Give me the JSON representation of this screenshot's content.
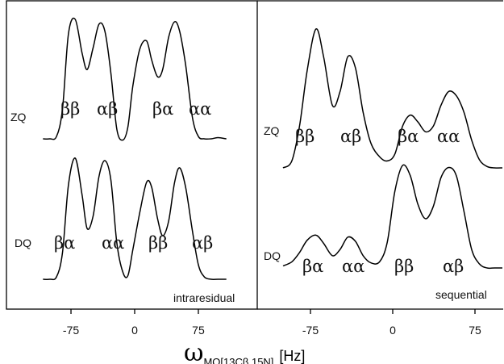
{
  "chart_data": [
    {
      "type": "line",
      "corner_label": "intraresidual",
      "x_ticks": [
        -75,
        0,
        75
      ],
      "traces": [
        {
          "name": "ZQ",
          "peak_labels": [
            "ββ",
            "αβ",
            "βα",
            "αα"
          ],
          "x": [
            -108,
            -100,
            -92,
            -85,
            -78,
            -70,
            -62,
            -56,
            -49,
            -42,
            -35,
            -28,
            -21,
            -14,
            -8,
            -2,
            6,
            14,
            20,
            27,
            33,
            40,
            47,
            53,
            60,
            68,
            75,
            82,
            90,
            98,
            108
          ],
          "y": [
            0.0,
            0.0,
            0.02,
            0.25,
            0.88,
            1.0,
            0.72,
            0.58,
            0.76,
            0.96,
            0.9,
            0.55,
            0.08,
            -0.01,
            0.1,
            0.45,
            0.75,
            0.82,
            0.66,
            0.52,
            0.58,
            0.85,
            0.98,
            0.9,
            0.62,
            0.18,
            0.02,
            0.0,
            0.0,
            0.01,
            0.0
          ]
        },
        {
          "name": "DQ",
          "peak_labels": [
            "βα",
            "αα",
            "ββ",
            "αβ"
          ],
          "x": [
            -108,
            -100,
            -92,
            -85,
            -78,
            -70,
            -62,
            -56,
            -49,
            -42,
            -35,
            -28,
            -21,
            -14,
            -8,
            -2,
            6,
            14,
            20,
            27,
            33,
            40,
            47,
            53,
            60,
            68,
            75,
            82,
            90,
            98,
            108
          ],
          "y": [
            0.0,
            0.0,
            0.02,
            0.22,
            0.78,
            1.0,
            0.7,
            0.42,
            0.52,
            0.85,
            0.98,
            0.82,
            0.3,
            0.06,
            0.03,
            0.25,
            0.55,
            0.8,
            0.76,
            0.5,
            0.36,
            0.48,
            0.8,
            0.92,
            0.76,
            0.4,
            0.12,
            0.02,
            0.0,
            0.0,
            0.0
          ]
        }
      ]
    },
    {
      "type": "line",
      "corner_label": "sequential",
      "x_ticks": [
        -75,
        0,
        75
      ],
      "traces": [
        {
          "name": "ZQ",
          "peak_labels": [
            "ββ",
            "αβ",
            "βα",
            "αα"
          ],
          "x": [
            -100,
            -92,
            -85,
            -78,
            -70,
            -63,
            -55,
            -48,
            -41,
            -34,
            -27,
            -20,
            -12,
            -5,
            2,
            9,
            16,
            23,
            30,
            37,
            44,
            51,
            58,
            65,
            72,
            79,
            86,
            93,
            100
          ],
          "y": [
            0.0,
            0.05,
            0.3,
            0.7,
            1.0,
            0.8,
            0.45,
            0.55,
            0.8,
            0.72,
            0.4,
            0.18,
            0.08,
            0.05,
            0.1,
            0.3,
            0.38,
            0.33,
            0.26,
            0.3,
            0.45,
            0.55,
            0.52,
            0.4,
            0.2,
            0.06,
            0.01,
            0.0,
            0.0
          ]
        },
        {
          "name": "DQ",
          "peak_labels": [
            "βα",
            "αα",
            "ββ",
            "αβ"
          ],
          "x": [
            -100,
            -92,
            -85,
            -78,
            -70,
            -63,
            -55,
            -48,
            -41,
            -34,
            -27,
            -20,
            -12,
            -5,
            2,
            9,
            16,
            23,
            30,
            37,
            44,
            51,
            58,
            65,
            72,
            79,
            86,
            93,
            100
          ],
          "y": [
            0.02,
            0.06,
            0.15,
            0.27,
            0.32,
            0.24,
            0.12,
            0.18,
            0.3,
            0.26,
            0.12,
            0.05,
            0.06,
            0.25,
            0.75,
            1.0,
            0.9,
            0.62,
            0.48,
            0.6,
            0.88,
            0.98,
            0.9,
            0.55,
            0.18,
            0.04,
            0.0,
            0.0,
            0.0
          ]
        }
      ]
    }
  ],
  "xlabel": {
    "symbol": "ω",
    "subscript": "MQ[13Cβ,15N]",
    "unit": "[Hz]"
  }
}
